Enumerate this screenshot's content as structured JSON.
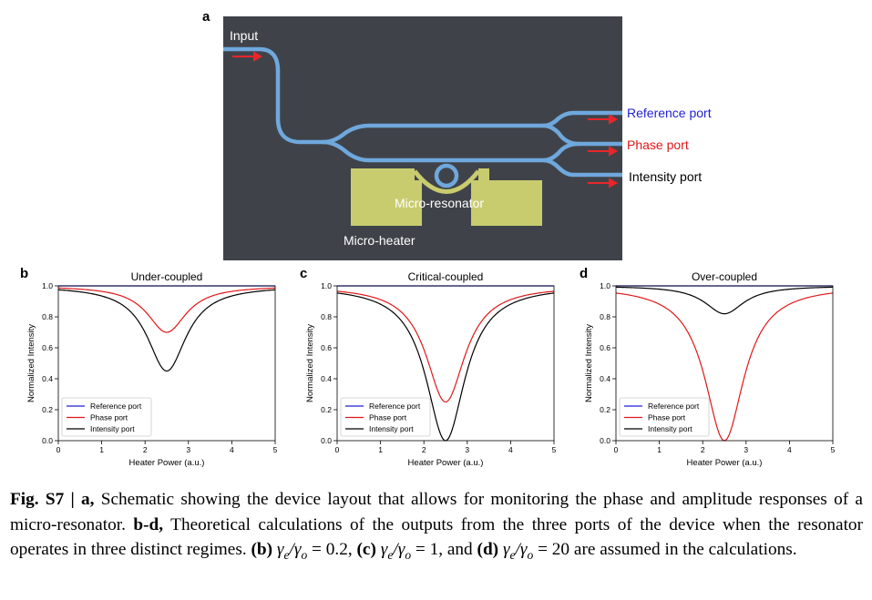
{
  "panel_letters": {
    "a": "a",
    "b": "b",
    "c": "c",
    "d": "d"
  },
  "schematic": {
    "input_label": "Input",
    "reference_label": "Reference port",
    "phase_label": "Phase port",
    "intensity_label": "Intensity port",
    "resonator_label": "Micro-resonator",
    "heater_label": "Micro-heater",
    "colors": {
      "background": "#3f4349",
      "waveguide": "#6fa8dc",
      "heater": "#c8cc6e",
      "arrow": "#e8262a",
      "reference": "#1f1fd6",
      "phase": "#e01818",
      "intensity": "#000000"
    }
  },
  "chart_data": [
    {
      "type": "line",
      "panel": "b",
      "title": "Under-coupled",
      "xlabel": "Heater Power (a.u.)",
      "ylabel": "Normalized Intensity",
      "xlim": [
        0,
        5
      ],
      "ylim": [
        0,
        1.0
      ],
      "xticks": [
        "0",
        "1",
        "2",
        "3",
        "4",
        "5"
      ],
      "yticks": [
        "0.0",
        "0.2",
        "0.4",
        "0.6",
        "0.8",
        "1.0"
      ],
      "legend_position": "lower-left",
      "center": 2.5,
      "series": [
        {
          "name": "Reference port",
          "color": "#1f1fd6",
          "min": 1.0,
          "width": 0.55
        },
        {
          "name": "Phase port",
          "color": "#e01818",
          "min": 0.7,
          "width": 0.55
        },
        {
          "name": "Intensity port",
          "color": "#000000",
          "min": 0.45,
          "width": 0.55
        }
      ]
    },
    {
      "type": "line",
      "panel": "c",
      "title": "Critical-coupled",
      "xlabel": "Heater Power (a.u.)",
      "ylabel": "Normalized Intensity",
      "xlim": [
        0,
        5
      ],
      "ylim": [
        0,
        1.0
      ],
      "xticks": [
        "0",
        "1",
        "2",
        "3",
        "4",
        "5"
      ],
      "yticks": [
        "0.0",
        "0.2",
        "0.4",
        "0.6",
        "0.8",
        "1.0"
      ],
      "legend_position": "lower-left",
      "center": 2.5,
      "series": [
        {
          "name": "Reference port",
          "color": "#1f1fd6",
          "min": 1.0,
          "width": 0.55
        },
        {
          "name": "Phase port",
          "color": "#e01818",
          "min": 0.25,
          "width": 0.55
        },
        {
          "name": "Intensity port",
          "color": "#000000",
          "min": 0.0,
          "width": 0.55
        }
      ]
    },
    {
      "type": "line",
      "panel": "d",
      "title": "Over-coupled",
      "xlabel": "Heater Power (a.u.)",
      "ylabel": "Normalized Intensity",
      "xlim": [
        0,
        5
      ],
      "ylim": [
        0,
        1.0
      ],
      "xticks": [
        "0",
        "1",
        "2",
        "3",
        "4",
        "5"
      ],
      "yticks": [
        "0.0",
        "0.2",
        "0.4",
        "0.6",
        "0.8",
        "1.0"
      ],
      "legend_position": "lower-left",
      "center": 2.5,
      "series": [
        {
          "name": "Reference port",
          "color": "#1f1fd6",
          "min": 1.0,
          "width": 0.55
        },
        {
          "name": "Phase port",
          "color": "#e01818",
          "min": 0.0,
          "width": 0.55
        },
        {
          "name": "Intensity port",
          "color": "#000000",
          "min": 0.82,
          "width": 0.55
        }
      ]
    }
  ],
  "caption": {
    "fig_label": "Fig. S7 | a,",
    "part1": " Schematic showing the device layout that allows for monitoring the phase and amplitude responses of a micro-resonator. ",
    "bd_label": "b-d,",
    "part2": " Theoretical calculations of the outputs from the three ports of the device when the resonator operates in three distinct regimes. ",
    "b_label": "(b)",
    "b_value": " = 0.2, ",
    "c_label": "(c)",
    "c_value": " = 1, and ",
    "d_label": "(d)",
    "d_value": " = 20 are assumed in the calculations."
  }
}
